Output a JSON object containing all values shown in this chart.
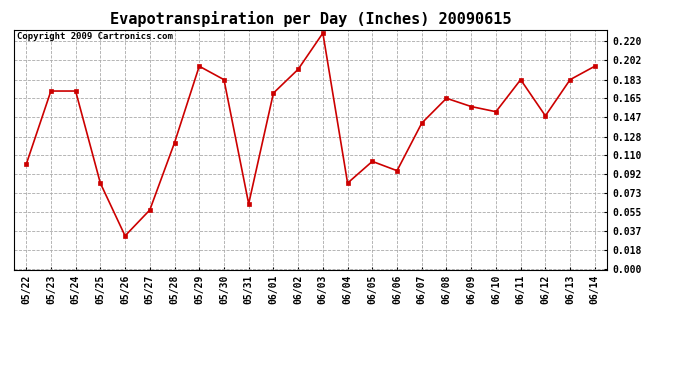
{
  "title": "Evapotranspiration per Day (Inches) 20090615",
  "copyright": "Copyright 2009 Cartronics.com",
  "dates": [
    "05/22",
    "05/23",
    "05/24",
    "05/25",
    "05/26",
    "05/27",
    "05/28",
    "05/29",
    "05/30",
    "05/31",
    "06/01",
    "06/02",
    "06/03",
    "06/04",
    "06/05",
    "06/06",
    "06/07",
    "06/08",
    "06/09",
    "06/10",
    "06/11",
    "06/12",
    "06/13",
    "06/14"
  ],
  "values": [
    0.101,
    0.172,
    0.172,
    0.083,
    0.032,
    0.057,
    0.122,
    0.196,
    0.183,
    0.063,
    0.17,
    0.193,
    0.228,
    0.083,
    0.104,
    0.095,
    0.141,
    0.165,
    0.157,
    0.152,
    0.183,
    0.148,
    0.183,
    0.196
  ],
  "line_color": "#cc0000",
  "marker": "s",
  "marker_size": 2.5,
  "bg_color": "#ffffff",
  "fig_bg_color": "#ffffff",
  "grid_color": "#aaaaaa",
  "yticks": [
    0.0,
    0.018,
    0.037,
    0.055,
    0.073,
    0.092,
    0.11,
    0.128,
    0.147,
    0.165,
    0.183,
    0.202,
    0.22
  ],
  "ylim": [
    -0.001,
    0.231
  ],
  "title_fontsize": 11,
  "tick_fontsize": 7,
  "copyright_fontsize": 6.5
}
